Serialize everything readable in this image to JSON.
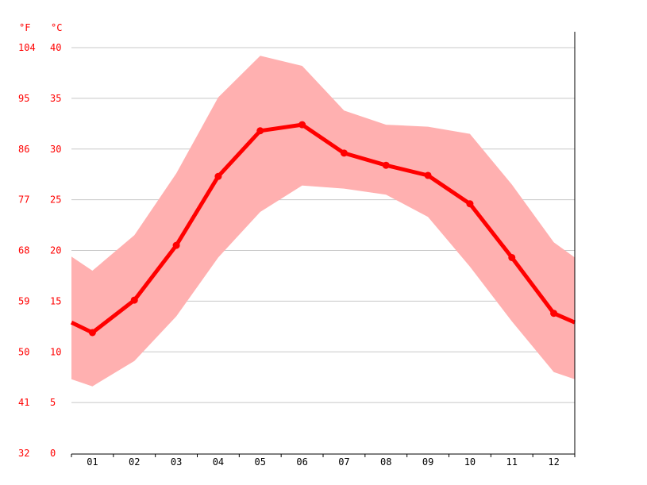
{
  "chart_data": {
    "type": "line",
    "categories": [
      "01",
      "02",
      "03",
      "04",
      "05",
      "06",
      "07",
      "08",
      "09",
      "10",
      "11",
      "12"
    ],
    "yunits": {
      "left": "°F",
      "right": "°C"
    },
    "yticks_c": [
      0,
      5,
      10,
      15,
      20,
      25,
      30,
      35,
      40
    ],
    "yticks_f": [
      32,
      41,
      50,
      59,
      68,
      77,
      86,
      95,
      104
    ],
    "ylim": [
      0,
      40
    ],
    "grid": true,
    "series": [
      {
        "values": [
          11.9,
          15.1,
          20.5,
          27.3,
          31.8,
          32.4,
          29.6,
          28.4,
          27.4,
          24.6,
          19.3,
          13.8
        ],
        "start_value": 12.9,
        "end_value": 12.9,
        "color": "#ff0000"
      }
    ],
    "band": {
      "upper": [
        18.0,
        21.5,
        27.6,
        35.1,
        39.2,
        38.2,
        33.8,
        32.4,
        32.2,
        31.5,
        26.5,
        20.8
      ],
      "upper_start": 19.4,
      "upper_end": 19.3,
      "lower": [
        6.6,
        9.1,
        13.5,
        19.3,
        23.8,
        26.4,
        26.1,
        25.5,
        23.3,
        18.4,
        13.0,
        8.0
      ],
      "lower_start": 7.3,
      "lower_end": 7.3,
      "color": "#ffb0b0"
    }
  }
}
